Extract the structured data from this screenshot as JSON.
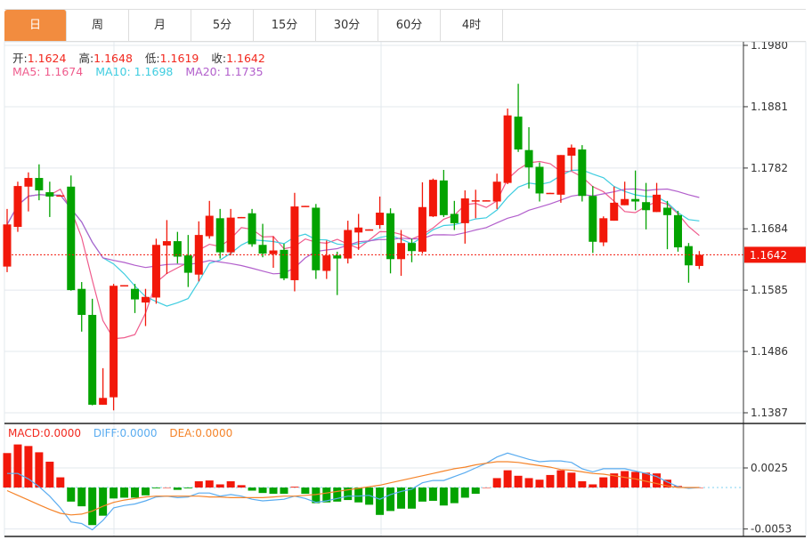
{
  "tabs": [
    {
      "label": "日",
      "active": true
    },
    {
      "label": "周",
      "active": false
    },
    {
      "label": "月",
      "active": false
    },
    {
      "label": "5分",
      "active": false
    },
    {
      "label": "15分",
      "active": false
    },
    {
      "label": "30分",
      "active": false
    },
    {
      "label": "60分",
      "active": false
    },
    {
      "label": "4时",
      "active": false
    }
  ],
  "ohlc_legend": {
    "open_label": "开:",
    "open": "1.1624",
    "high_label": "高:",
    "high": "1.1648",
    "low_label": "低:",
    "low": "1.1619",
    "close_label": "收:",
    "close": "1.1642"
  },
  "ma_legend": {
    "ma5": "MA5: 1.1674",
    "ma10": "MA10: 1.1698",
    "ma20": "MA20: 1.1735"
  },
  "macd_legend": {
    "macd": "MACD:0.0000",
    "diff": "DIFF:0.0000",
    "dea": "DEA:0.0000"
  },
  "colors": {
    "up": "#f2180a",
    "down": "#03a300",
    "active_tab": "#f28c3f",
    "ma5": "#ef5b8c",
    "ma10": "#3fcde0",
    "ma20": "#b25fcc",
    "diff": "#5aacf0",
    "dea": "#f5842a"
  },
  "chart_data": [
    {
      "type": "candlestick",
      "ylim": [
        1.1387,
        1.198
      ],
      "y_ticks": [
        "1.1980",
        "1.1881",
        "1.1782",
        "1.1684",
        "1.1585",
        "1.1486",
        "1.1387"
      ],
      "current_price": "1.1642",
      "ma_periods": [
        5,
        10,
        20
      ],
      "candles": [
        [
          1.1623,
          1.1716,
          1.1614,
          1.1691
        ],
        [
          1.1687,
          1.176,
          1.1679,
          1.1753
        ],
        [
          1.1752,
          1.1775,
          1.1712,
          1.1766
        ],
        [
          1.1766,
          1.1788,
          1.173,
          1.1746
        ],
        [
          1.1743,
          1.176,
          1.1703,
          1.1736
        ],
        [
          1.1737,
          1.1738,
          1.1736,
          1.1738
        ],
        [
          1.1752,
          1.177,
          1.1584,
          1.1585
        ],
        [
          1.1587,
          1.1598,
          1.1518,
          1.1545
        ],
        [
          1.1545,
          1.1571,
          1.1399,
          1.14
        ],
        [
          1.14,
          1.1459,
          1.14,
          1.1411
        ],
        [
          1.1412,
          1.1595,
          1.1391,
          1.1592
        ],
        [
          1.1592,
          1.1593,
          1.1592,
          1.1593
        ],
        [
          1.1587,
          1.1595,
          1.1548,
          1.157
        ],
        [
          1.1565,
          1.1587,
          1.1527,
          1.1574
        ],
        [
          1.1573,
          1.1668,
          1.1563,
          1.1658
        ],
        [
          1.1657,
          1.1698,
          1.1611,
          1.1664
        ],
        [
          1.1664,
          1.1679,
          1.1628,
          1.1639
        ],
        [
          1.1641,
          1.1674,
          1.159,
          1.1613
        ],
        [
          1.161,
          1.1696,
          1.1599,
          1.1674
        ],
        [
          1.1672,
          1.1729,
          1.1668,
          1.1705
        ],
        [
          1.1701,
          1.1716,
          1.1636,
          1.1646
        ],
        [
          1.1646,
          1.1716,
          1.1641,
          1.1702
        ],
        [
          1.1702,
          1.1703,
          1.1702,
          1.1703
        ],
        [
          1.1709,
          1.1716,
          1.1655,
          1.1659
        ],
        [
          1.1658,
          1.1692,
          1.1638,
          1.1644
        ],
        [
          1.1643,
          1.1672,
          1.1621,
          1.1649
        ],
        [
          1.165,
          1.166,
          1.1601,
          1.1604
        ],
        [
          1.1601,
          1.1742,
          1.1583,
          1.172
        ],
        [
          1.172,
          1.1721,
          1.172,
          1.1721
        ],
        [
          1.1718,
          1.1724,
          1.1603,
          1.1617
        ],
        [
          1.1616,
          1.1665,
          1.1603,
          1.1641
        ],
        [
          1.1641,
          1.1647,
          1.1577,
          1.1636
        ],
        [
          1.1636,
          1.1697,
          1.1628,
          1.1682
        ],
        [
          1.1678,
          1.1708,
          1.165,
          1.1686
        ],
        [
          1.1682,
          1.1683,
          1.1682,
          1.1683
        ],
        [
          1.169,
          1.1736,
          1.1684,
          1.171
        ],
        [
          1.1709,
          1.1717,
          1.1612,
          1.1635
        ],
        [
          1.1635,
          1.1682,
          1.1608,
          1.1661
        ],
        [
          1.1661,
          1.1668,
          1.163,
          1.1648
        ],
        [
          1.1647,
          1.1759,
          1.1644,
          1.1719
        ],
        [
          1.1704,
          1.1765,
          1.1703,
          1.1763
        ],
        [
          1.1762,
          1.1779,
          1.1703,
          1.1706
        ],
        [
          1.1708,
          1.1729,
          1.1682,
          1.1693
        ],
        [
          1.1693,
          1.1746,
          1.166,
          1.1733
        ],
        [
          1.1729,
          1.1747,
          1.1701,
          1.173
        ],
        [
          1.1729,
          1.173,
          1.1729,
          1.173
        ],
        [
          1.1728,
          1.1773,
          1.1716,
          1.176
        ],
        [
          1.1758,
          1.1878,
          1.1756,
          1.1867
        ],
        [
          1.1865,
          1.1918,
          1.1808,
          1.1812
        ],
        [
          1.1811,
          1.1848,
          1.1749,
          1.1783
        ],
        [
          1.1784,
          1.1791,
          1.1728,
          1.1741
        ],
        [
          1.1741,
          1.1742,
          1.1741,
          1.1742
        ],
        [
          1.1739,
          1.1803,
          1.1726,
          1.1803
        ],
        [
          1.1802,
          1.182,
          1.1778,
          1.1815
        ],
        [
          1.1812,
          1.1819,
          1.1728,
          1.1737
        ],
        [
          1.1737,
          1.1753,
          1.1645,
          1.1663
        ],
        [
          1.1662,
          1.1704,
          1.1656,
          1.1701
        ],
        [
          1.1697,
          1.1752,
          1.1697,
          1.1726
        ],
        [
          1.1722,
          1.176,
          1.1722,
          1.1732
        ],
        [
          1.1732,
          1.1778,
          1.1714,
          1.1728
        ],
        [
          1.1727,
          1.1758,
          1.1683,
          1.1714
        ],
        [
          1.1711,
          1.1758,
          1.1711,
          1.1739
        ],
        [
          1.1718,
          1.1729,
          1.1651,
          1.1706
        ],
        [
          1.1706,
          1.1713,
          1.1647,
          1.1654
        ],
        [
          1.1656,
          1.1661,
          1.1597,
          1.1625
        ],
        [
          1.1624,
          1.1648,
          1.1619,
          1.1642
        ]
      ]
    },
    {
      "type": "bar+line",
      "y_ticks": [
        "0.0025",
        "-0.0053"
      ],
      "ylim": [
        -0.0057,
        0.0063
      ],
      "macd": [
        0.0044,
        0.0055,
        0.0053,
        0.0045,
        0.0033,
        0.0013,
        -0.0018,
        -0.0024,
        -0.0048,
        -0.0036,
        -0.0014,
        -0.0013,
        -0.0013,
        -0.001,
        -0.0001,
        0.0,
        -0.0003,
        -0.0001,
        0.0008,
        0.0009,
        0.0004,
        0.0008,
        0.0003,
        -0.0004,
        -0.0007,
        -0.0008,
        -0.0008,
        0.0001,
        -0.0008,
        -0.002,
        -0.0019,
        -0.0018,
        -0.0016,
        -0.0019,
        -0.0022,
        -0.0035,
        -0.003,
        -0.0027,
        -0.0027,
        -0.0018,
        -0.0017,
        -0.0023,
        -0.002,
        -0.0013,
        -0.0008,
        0.0,
        0.0012,
        0.0022,
        0.0015,
        0.0012,
        0.001,
        0.0016,
        0.0022,
        0.0019,
        0.0008,
        0.0004,
        0.0013,
        0.0018,
        0.0021,
        0.002,
        0.0019,
        0.0018,
        0.001,
        0.0002,
        -0.0001,
        0.0
      ],
      "diff": [
        0.0018,
        0.0018,
        0.0011,
        0.0001,
        -0.0011,
        -0.0026,
        -0.0044,
        -0.0046,
        -0.0054,
        -0.0042,
        -0.0026,
        -0.0023,
        -0.0021,
        -0.0017,
        -0.0012,
        -0.0011,
        -0.0013,
        -0.0012,
        -0.0007,
        -0.0007,
        -0.0011,
        -0.0009,
        -0.0011,
        -0.0015,
        -0.0017,
        -0.0016,
        -0.0015,
        -0.0011,
        -0.0014,
        -0.0019,
        -0.0017,
        -0.0014,
        -0.0011,
        -0.0011,
        -0.001,
        -0.0015,
        -0.0009,
        -0.0005,
        -0.0002,
        0.0006,
        0.0009,
        0.0009,
        0.0014,
        0.0019,
        0.0025,
        0.0031,
        0.0039,
        0.0044,
        0.004,
        0.0036,
        0.0033,
        0.0034,
        0.0034,
        0.0032,
        0.0024,
        0.002,
        0.0024,
        0.0024,
        0.0024,
        0.0021,
        0.0018,
        0.0014,
        0.0007,
        0.0001,
        -0.0001,
        0.0
      ],
      "dea": [
        -0.0004,
        -0.001,
        -0.0016,
        -0.0022,
        -0.0028,
        -0.0033,
        -0.0035,
        -0.0034,
        -0.003,
        -0.0024,
        -0.0019,
        -0.0016,
        -0.0014,
        -0.0012,
        -0.0011,
        -0.0011,
        -0.0011,
        -0.0011,
        -0.0011,
        -0.0012,
        -0.0012,
        -0.0013,
        -0.0013,
        -0.0013,
        -0.0013,
        -0.0012,
        -0.0011,
        -0.0011,
        -0.001,
        -0.0009,
        -0.0007,
        -0.0005,
        -0.0003,
        -0.0001,
        0.0001,
        0.0003,
        0.0006,
        0.0009,
        0.0012,
        0.0015,
        0.0018,
        0.0021,
        0.0024,
        0.0026,
        0.0029,
        0.0031,
        0.0033,
        0.0033,
        0.0032,
        0.003,
        0.0028,
        0.0026,
        0.0023,
        0.0022,
        0.002,
        0.0018,
        0.0017,
        0.0015,
        0.0013,
        0.0011,
        0.0008,
        0.0005,
        0.0002,
        0.0,
        0.0,
        0.0
      ]
    }
  ]
}
